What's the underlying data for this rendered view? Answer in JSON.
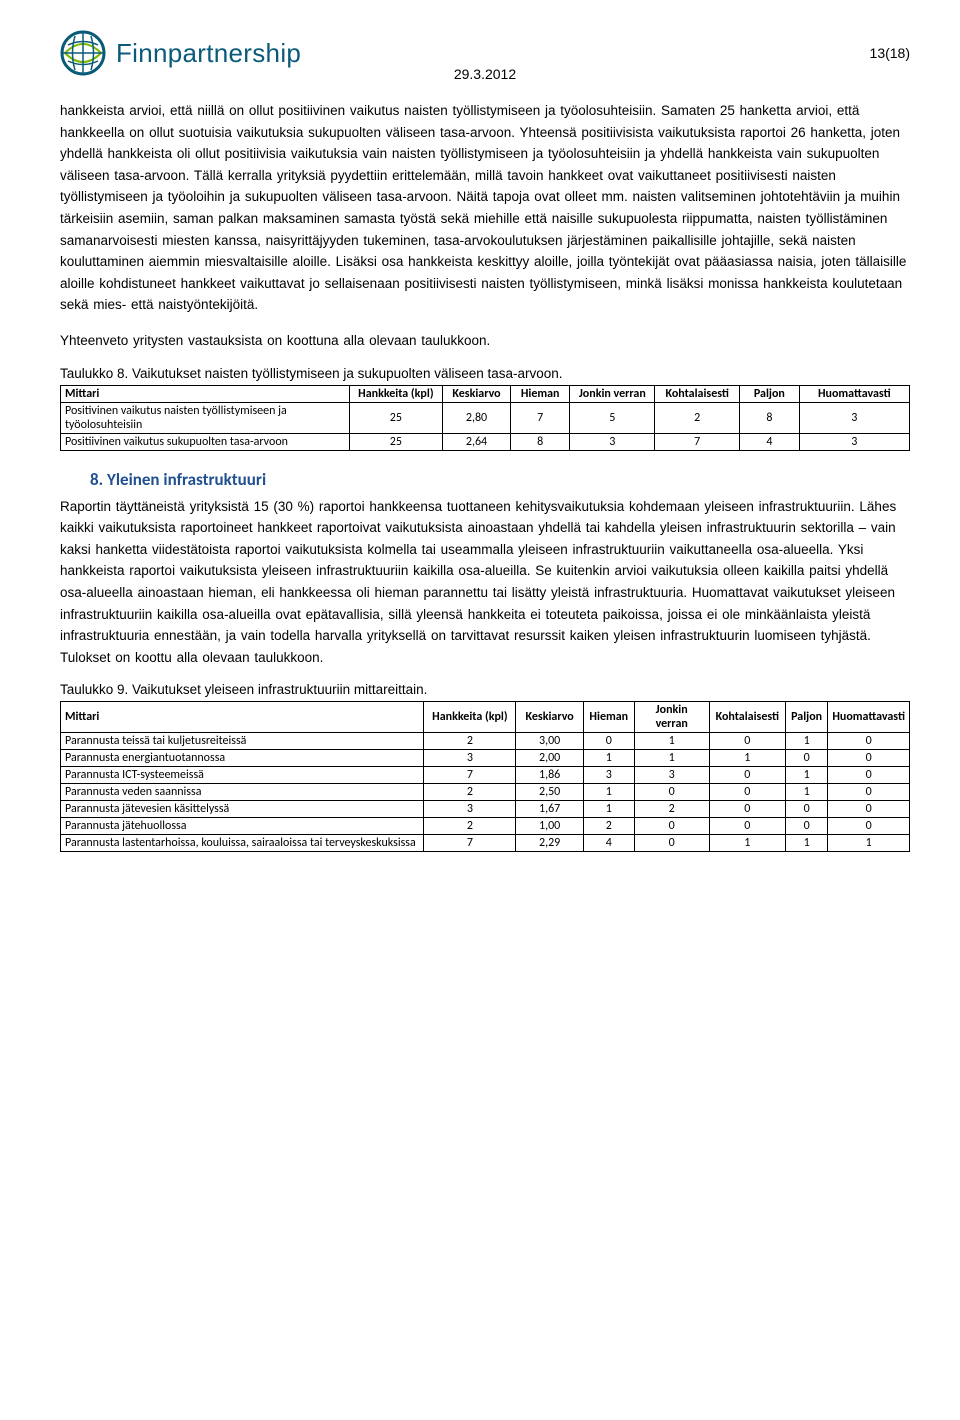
{
  "header": {
    "logo_text": "Finnpartnership",
    "page_number": "13(18)",
    "date": "29.3.2012"
  },
  "paragraphs": {
    "p1": "hankkeista arvioi, että niillä on ollut positiivinen vaikutus naisten työllistymiseen ja työolosuhteisiin. Samaten 25 hanketta arvioi, että hankkeella on ollut suotuisia vaikutuksia sukupuolten väliseen tasa-arvoon. Yhteensä positiivisista vaikutuksista raportoi 26 hanketta, joten yhdellä hankkeista oli ollut positiivisia vaikutuksia vain naisten työllistymiseen ja työolosuhteisiin ja yhdellä hankkeista vain sukupuolten väliseen tasa-arvoon. Tällä kerralla yrityksiä pyydettiin erittelemään, millä tavoin hankkeet ovat vaikuttaneet positiivisesti naisten työllistymiseen ja työoloihin ja sukupuolten väliseen tasa-arvoon. Näitä tapoja ovat olleet mm. naisten valitseminen johtotehtäviin ja muihin tärkeisiin asemiin, saman palkan maksaminen samasta työstä sekä miehille että naisille sukupuolesta riippumatta, naisten työllistäminen samanarvoisesti miesten kanssa, naisyrittäjyyden tukeminen, tasa-arvokoulutuksen järjestäminen paikallisille johtajille, sekä naisten kouluttaminen aiemmin miesvaltaisille aloille. Lisäksi osa hankkeista keskittyy aloille, joilla työntekijät ovat pääasiassa naisia, joten tällaisille aloille kohdistuneet hankkeet vaikuttavat jo sellaisenaan positiivisesti naisten työllistymiseen, minkä lisäksi monissa hankkeista koulutetaan sekä mies- että naistyöntekijöitä.",
    "p2": "Yhteenveto yritysten vastauksista on koottuna alla olevaan taulukkoon.",
    "p3": "Taulukko 8. Vaikutukset naisten työllistymiseen ja sukupuolten väliseen tasa-arvoon.",
    "p4": "Raportin täyttäneistä yrityksistä 15 (30 %) raportoi hankkeensa tuottaneen kehitysvaikutuksia kohdemaan yleiseen infrastruktuuriin. Lähes kaikki vaikutuksista raportoineet hankkeet raportoivat vaikutuksista ainoastaan yhdellä tai kahdella yleisen infrastruktuurin sektorilla – vain kaksi hanketta viidestätoista raportoi vaikutuksista kolmella tai useammalla yleiseen infrastruktuuriin vaikuttaneella osa-alueella. Yksi hankkeista raportoi vaikutuksista yleiseen infrastruktuuriin kaikilla osa-alueilla. Se kuitenkin arvioi vaikutuksia olleen kaikilla paitsi yhdellä osa-alueella ainoastaan hieman, eli hankkeessa oli hieman parannettu tai lisätty yleistä infrastruktuuria. Huomattavat vaikutukset yleiseen infrastruktuuriin kaikilla osa-alueilla ovat epätavallisia, sillä yleensä hankkeita ei toteuteta paikoissa, joissa ei ole minkäänlaista yleistä infrastruktuuria ennestään, ja vain todella harvalla yrityksellä on tarvittavat resurssit kaiken yleisen infrastruktuurin luomiseen tyhjästä. Tulokset on koottu alla olevaan taulukkoon.",
    "p5": "Taulukko 9. Vaikutukset yleiseen infrastruktuuriin mittareittain."
  },
  "section8": "8. Yleinen infrastruktuuri",
  "table8": {
    "headers": [
      "Mittari",
      "Hankkeita (kpl)",
      "Keskiarvo",
      "Hieman",
      "Jonkin verran",
      "Kohtalaisesti",
      "Paljon",
      "Huomattavasti"
    ],
    "rows": [
      [
        "Positivinen vaikutus naisten työllistymiseen ja työolosuhteisiin",
        "25",
        "2,80",
        "7",
        "5",
        "2",
        "8",
        "3"
      ],
      [
        "Positiivinen vaikutus sukupuolten tasa-arvoon",
        "25",
        "2,64",
        "8",
        "3",
        "7",
        "4",
        "3"
      ]
    ],
    "col_widths": [
      "34%",
      "11%",
      "8%",
      "7%",
      "10%",
      "10%",
      "7%",
      "13%"
    ]
  },
  "table9": {
    "headers": [
      "Mittari",
      "Hankkeita (kpl)",
      "Keskiarvo",
      "Hieman",
      "Jonkin verran",
      "Kohtalaisesti",
      "Paljon",
      "Huomattavasti"
    ],
    "rows": [
      [
        "Parannusta teissä tai kuljetusreiteissä",
        "2",
        "3,00",
        "0",
        "1",
        "0",
        "1",
        "0"
      ],
      [
        "Parannusta energiantuotannossa",
        "3",
        "2,00",
        "1",
        "1",
        "1",
        "0",
        "0"
      ],
      [
        "Parannusta ICT-systeemeissä",
        "7",
        "1,86",
        "3",
        "3",
        "0",
        "1",
        "0"
      ],
      [
        "Parannusta veden saannissa",
        "2",
        "2,50",
        "1",
        "0",
        "0",
        "1",
        "0"
      ],
      [
        "Parannusta jätevesien käsittelyssä",
        "3",
        "1,67",
        "1",
        "2",
        "0",
        "0",
        "0"
      ],
      [
        "Parannusta jätehuollossa",
        "2",
        "1,00",
        "2",
        "0",
        "0",
        "0",
        "0"
      ],
      [
        "Parannusta lastentarhoissa, kouluissa, sairaaloissa tai terveyskeskuksissa",
        "7",
        "2,29",
        "4",
        "0",
        "1",
        "1",
        "1"
      ]
    ],
    "col_widths": [
      "44%",
      "11%",
      "8%",
      "6%",
      "9%",
      "9%",
      "5%",
      "8%"
    ]
  },
  "style": {
    "body_font_size": 13.5,
    "heading_color": "#205090",
    "logo_color": "#0a5a7a",
    "border_color": "#000000",
    "background_color": "#ffffff"
  }
}
